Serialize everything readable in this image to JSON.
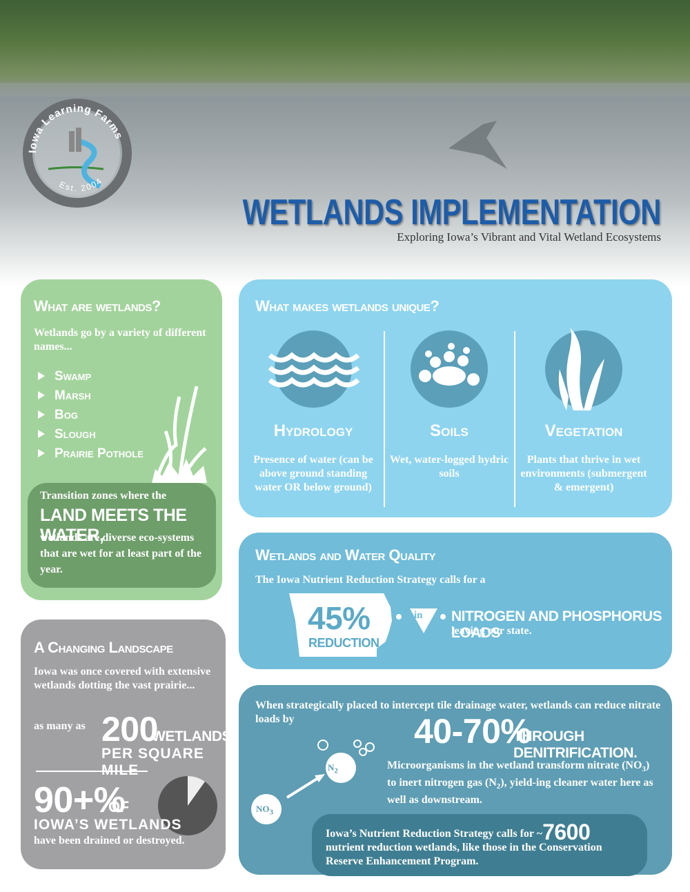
{
  "header": {
    "logo_name": "Iowa Learning Farms",
    "logo_est": "Est. 2004",
    "title": "WETLANDS IMPLEMENTATION",
    "subtitle": "Exploring Iowa’s Vibrant and Vital Wetland Ecosystems"
  },
  "what_are": {
    "heading": "What are wetlands?",
    "intro": "Wetlands go by a variety of different names...",
    "names": [
      "Swamp",
      "Marsh",
      "Bog",
      "Slough",
      "Prairie Pothole"
    ],
    "callout_pre": "Transition zones where the",
    "callout_emphasis": "LAND MEETS THE WATER,",
    "callout_post": "wetlands are diverse eco-systems that are wet for at least part of the year."
  },
  "unique": {
    "heading": "What makes wetlands unique?",
    "items": [
      {
        "title": "Hydrology",
        "text": "Presence of water (can be above ground standing water OR below ground)"
      },
      {
        "title": "Soils",
        "text": "Wet, water-logged hydric soils"
      },
      {
        "title": "Vegetation",
        "text": "Plants that thrive in wet environments (submergent & emergent)"
      }
    ]
  },
  "water_quality": {
    "heading": "Wetlands and Water Quality",
    "intro": "The Iowa Nutrient Reduction Strategy calls for a",
    "percent": "45%",
    "percent_label": "REDUCTION",
    "in": "in",
    "loads": "NITROGEN AND PHOSPHORUS LOADS",
    "leaving": "leaving our state."
  },
  "changing": {
    "heading": "A Changing Landscape",
    "text": "Iowa was once covered with extensive wetlands dotting the vast prairie...",
    "as_many": "as many as",
    "count": "200",
    "unit_line1": "WETLANDS",
    "unit_line2": "PER SQUARE MILE",
    "stat": "90+%",
    "stat_of": "OF",
    "stat_subject": "IOWA’S WETLANDS",
    "stat_text": "have been drained or destroyed."
  },
  "denitrification": {
    "intro": "When strategically placed to intercept tile drainage water, wetlands can reduce nitrate loads by",
    "range": "40-70%",
    "through": "THROUGH DENITRIFICATION.",
    "micro": [
      "Microorganisms in the wetland transform nitrate (NO",
      "3",
      ") to inert nitrogen gas (N",
      "2",
      "), yield-ing cleaner water here as well as downstream."
    ],
    "no3": [
      "NO",
      "3"
    ],
    "n2": [
      "N",
      "2"
    ],
    "strategy_pre": "Iowa’s Nutrient Reduction Strategy calls for ~",
    "strategy_count": "7600",
    "strategy_post": "nutrient reduction wetlands, like those in the Conservation Reserve Enhancement Program."
  }
}
